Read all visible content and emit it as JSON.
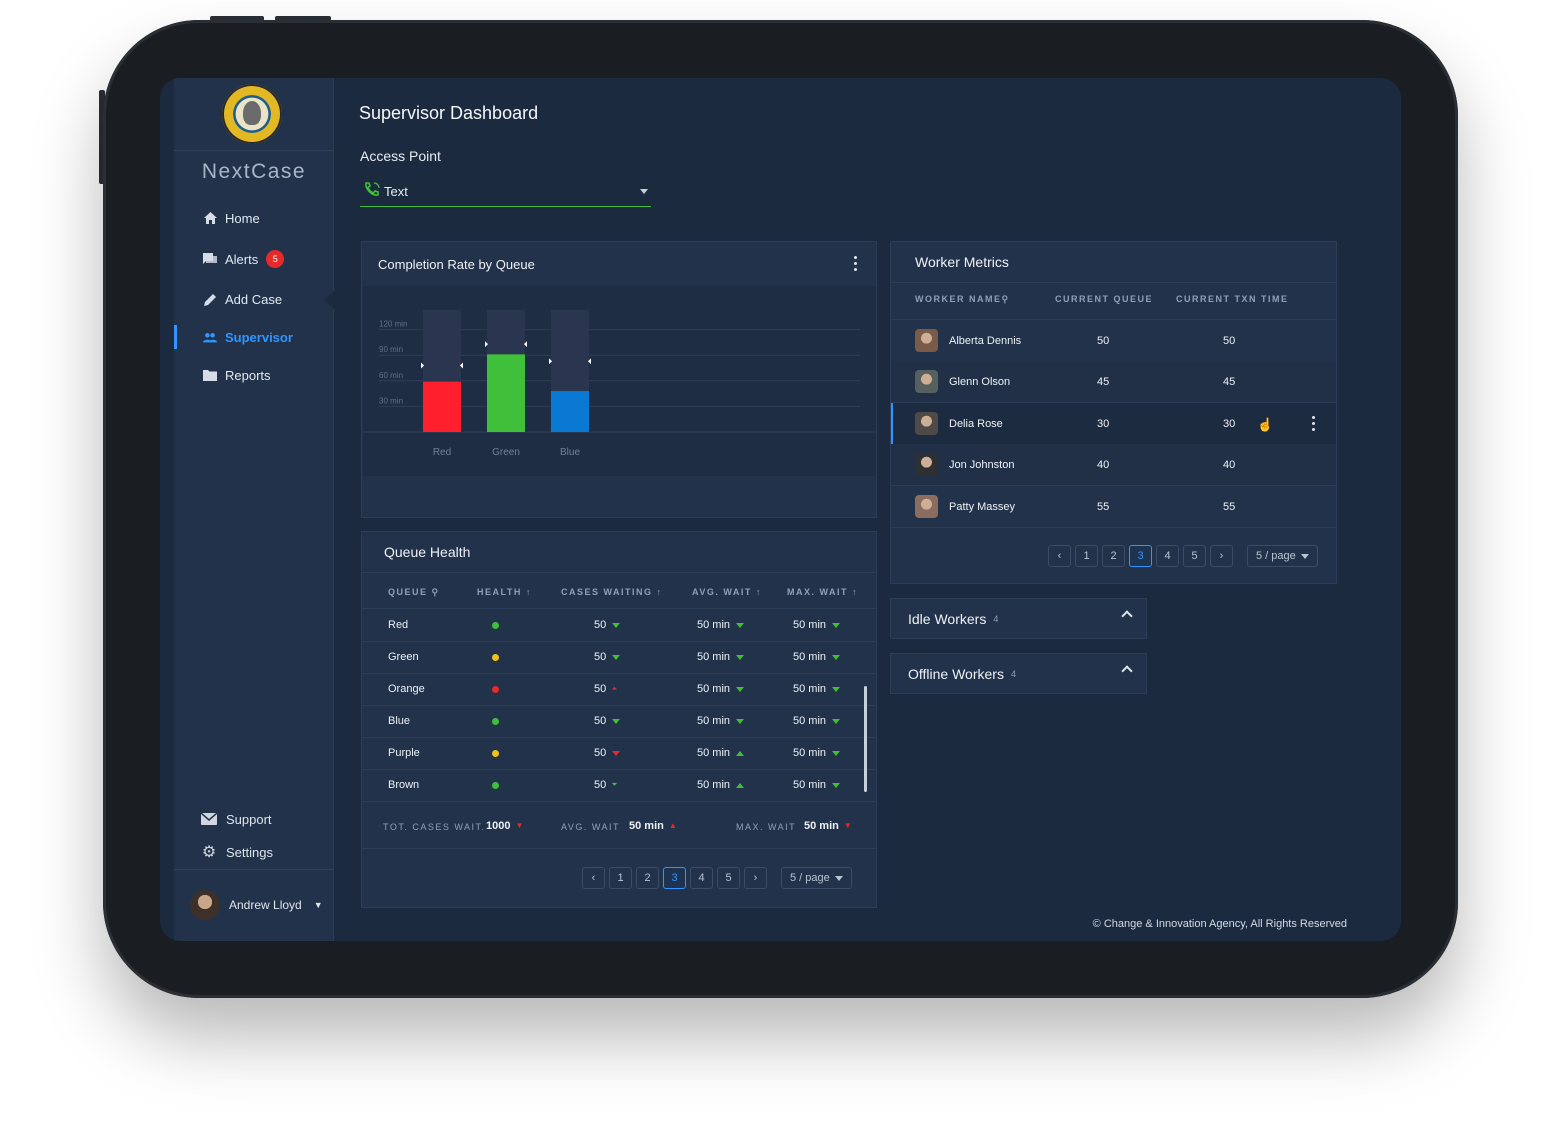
{
  "app": {
    "brand": "NextCase",
    "page_title": "Supervisor Dashboard",
    "footer": "© Change & Innovation Agency, All Rights Reserved"
  },
  "sidebar": {
    "items": [
      {
        "label": "Home",
        "icon": "home-icon"
      },
      {
        "label": "Alerts",
        "icon": "chat-icon",
        "badge": "5"
      },
      {
        "label": "Add Case",
        "icon": "pencil-icon"
      },
      {
        "label": "Supervisor",
        "icon": "people-icon",
        "active": true
      },
      {
        "label": "Reports",
        "icon": "folder-icon"
      }
    ],
    "bottom": [
      {
        "label": "Support",
        "icon": "mail-icon"
      },
      {
        "label": "Settings",
        "icon": "gear-icon"
      }
    ],
    "user": {
      "name": "Andrew Lloyd"
    }
  },
  "access_point": {
    "label": "Access Point",
    "value": "Text"
  },
  "completion": {
    "title": "Completion Rate by Queue"
  },
  "chart_data": {
    "type": "bar",
    "categories": [
      "Red",
      "Green",
      "Blue"
    ],
    "values": [
      59,
      91,
      48
    ],
    "target_markers": [
      78,
      103,
      83
    ],
    "max": 143,
    "yticks": [
      "30 min",
      "60 min",
      "90 min",
      "120 min"
    ],
    "ytick_values": [
      30,
      60,
      90,
      120
    ],
    "colors": [
      "#ff1f2d",
      "#3fbf3a",
      "#0a79d3"
    ],
    "track_color": "#2a3650",
    "grid": true
  },
  "queue_health": {
    "title": "Queue Health",
    "headers": [
      "QUEUE",
      "HEALTH",
      "CASES WAITING",
      "AVG. WAIT",
      "MAX. WAIT"
    ],
    "rows": [
      {
        "queue": "Red",
        "health": "#3fbf3a",
        "cases": "50",
        "cases_trend": "down",
        "avg": "50 min",
        "avg_trend": "down",
        "max": "50 min",
        "max_trend": "down"
      },
      {
        "queue": "Green",
        "health": "#f2c21b",
        "cases": "50",
        "cases_trend": "down",
        "avg": "50 min",
        "avg_trend": "down",
        "max": "50 min",
        "max_trend": "down"
      },
      {
        "queue": "Orange",
        "health": "#e62a2a",
        "cases": "50",
        "cases_trend": "double-up-red",
        "avg": "50 min",
        "avg_trend": "down",
        "max": "50 min",
        "max_trend": "down"
      },
      {
        "queue": "Blue",
        "health": "#3fbf3a",
        "cases": "50",
        "cases_trend": "down",
        "avg": "50 min",
        "avg_trend": "down",
        "max": "50 min",
        "max_trend": "down"
      },
      {
        "queue": "Purple",
        "health": "#f2c21b",
        "cases": "50",
        "cases_trend": "down-red",
        "avg": "50 min",
        "avg_trend": "up",
        "max": "50 min",
        "max_trend": "down"
      },
      {
        "queue": "Brown",
        "health": "#3fbf3a",
        "cases": "50",
        "cases_trend": "double-down",
        "avg": "50 min",
        "avg_trend": "up",
        "max": "50 min",
        "max_trend": "down"
      }
    ],
    "totals": {
      "tot_label": "TOT. CASES WAIT.",
      "tot_value": "1000",
      "avg_label": "AVG. WAIT",
      "avg_value": "50 min",
      "max_label": "MAX. WAIT",
      "max_value": "50 min"
    },
    "pager": {
      "pages": [
        "1",
        "2",
        "3",
        "4",
        "5"
      ],
      "current": "3",
      "size": "5 / page"
    }
  },
  "worker_metrics": {
    "title": "Worker Metrics",
    "headers": [
      "WORKER NAME",
      "CURRENT QUEUE",
      "CURRENT TXN TIME"
    ],
    "rows": [
      {
        "name": "Alberta Dennis",
        "queue": "50",
        "txn": "50"
      },
      {
        "name": "Glenn Olson",
        "queue": "45",
        "txn": "45"
      },
      {
        "name": "Delia Rose",
        "queue": "30",
        "txn": "30",
        "selected": true
      },
      {
        "name": "Jon Johnston",
        "queue": "40",
        "txn": "40"
      },
      {
        "name": "Patty Massey",
        "queue": "55",
        "txn": "55"
      }
    ],
    "pager": {
      "pages": [
        "1",
        "2",
        "3",
        "4",
        "5"
      ],
      "current": "3",
      "size": "5 / page"
    }
  },
  "idle_workers": {
    "label": "Idle Workers",
    "count": "4"
  },
  "offline_workers": {
    "label": "Offline Workers",
    "count": "4"
  }
}
